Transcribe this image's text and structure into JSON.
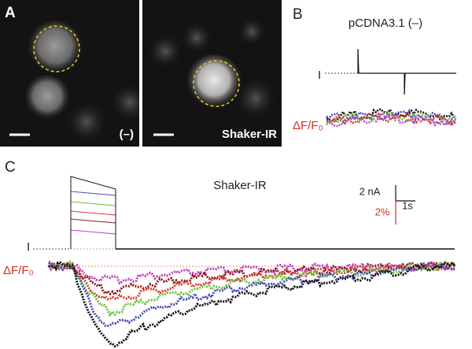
{
  "panel_a": {
    "label": "A",
    "left_image_tag": "(–)",
    "right_image_tag": "Shaker-IR"
  },
  "panel_b": {
    "label": "B",
    "title": "pCDNA3.1 (–)",
    "current_label": "I",
    "fluorescence_label": "ΔF/F₀"
  },
  "panel_c": {
    "label": "C",
    "title": "Shaker-IR",
    "current_label": "I",
    "fluorescence_label": "ΔF/F₀",
    "scale_bar": {
      "current": "2 nA",
      "fluorescence": "2%",
      "time": "1s"
    }
  }
}
